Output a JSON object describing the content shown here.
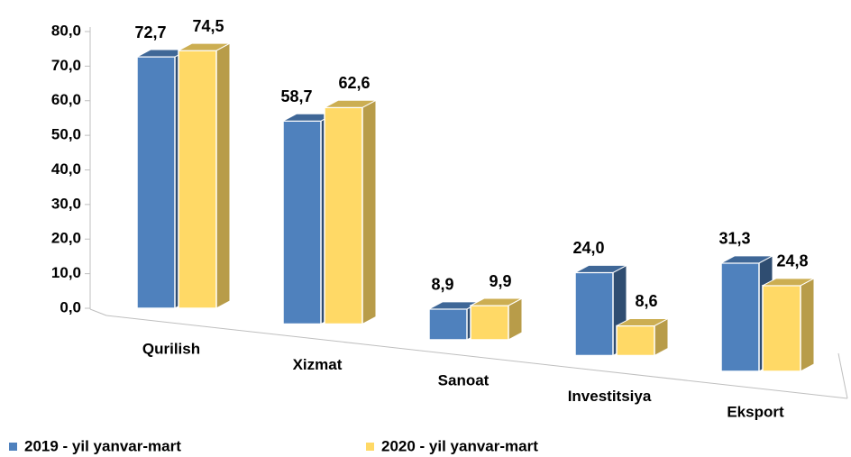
{
  "chart_data": {
    "type": "bar3d",
    "categories": [
      "Qurilish",
      "Xizmat",
      "Sanoat",
      "Investitsiya",
      "Eksport"
    ],
    "series": [
      {
        "name": "2019 - yil yanvar-mart",
        "color": "#4f81bd",
        "values": [
          72.7,
          58.7,
          8.9,
          24.0,
          31.3
        ],
        "value_labels": [
          "72,7",
          "58,7",
          "8,9",
          "24,0",
          "31,3"
        ]
      },
      {
        "name": "2020 - yil yanvar-mart",
        "color": "#ffd966",
        "values": [
          74.5,
          62.6,
          9.9,
          8.6,
          24.8
        ],
        "value_labels": [
          "74,5",
          "62,6",
          "9,9",
          "8,6",
          "24,8"
        ]
      }
    ],
    "ylim": [
      0,
      80
    ],
    "yticks": [
      {
        "value": 0,
        "label": "0,0"
      },
      {
        "value": 10,
        "label": "10,0"
      },
      {
        "value": 20,
        "label": "20,0"
      },
      {
        "value": 30,
        "label": "30,0"
      },
      {
        "value": 40,
        "label": "40,0"
      },
      {
        "value": 50,
        "label": "50,0"
      },
      {
        "value": 60,
        "label": "60,0"
      },
      {
        "value": 70,
        "label": "70,0"
      },
      {
        "value": 80,
        "label": "80,0"
      }
    ],
    "legend": "bottom"
  }
}
